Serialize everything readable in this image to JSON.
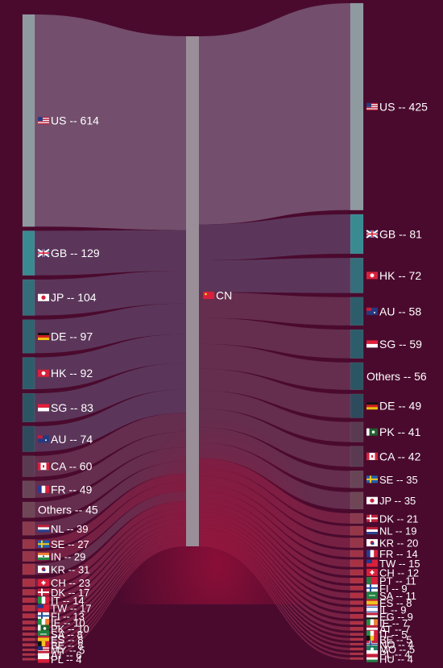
{
  "chart_data": {
    "type": "sankey",
    "title": "",
    "center": {
      "code": "CN",
      "label": "CN",
      "flag": "cn"
    },
    "left_label_separator": " -- ",
    "right_label_separator": "  -- ",
    "left": [
      {
        "code": "US",
        "value": 614,
        "flag": "us",
        "color": "#8e9aa0"
      },
      {
        "code": "GB",
        "value": 129,
        "flag": "gb",
        "color": "#3a8a92"
      },
      {
        "code": "JP",
        "value": 104,
        "flag": "jp",
        "color": "#336e7a"
      },
      {
        "code": "DE",
        "value": 97,
        "flag": "de",
        "color": "#2f6470"
      },
      {
        "code": "HK",
        "value": 92,
        "flag": "hk",
        "color": "#2d5d6b"
      },
      {
        "code": "SG",
        "value": 83,
        "flag": "sg",
        "color": "#2c5563"
      },
      {
        "code": "AU",
        "value": 74,
        "flag": "au",
        "color": "#2d4b5c"
      },
      {
        "code": "CA",
        "value": 60,
        "flag": "ca",
        "color": "#5a3a50"
      },
      {
        "code": "FR",
        "value": 49,
        "flag": "fr",
        "color": "#684556"
      },
      {
        "code": "Others",
        "value": 45,
        "flag": "",
        "color": "#6e4655"
      },
      {
        "code": "NL",
        "value": 39,
        "flag": "nl",
        "color": "#8a3a4e"
      },
      {
        "code": "SE",
        "value": 27,
        "flag": "se",
        "color": "#963648"
      },
      {
        "code": "IN",
        "value": 29,
        "flag": "in",
        "color": "#963648"
      },
      {
        "code": "KR",
        "value": 31,
        "flag": "kr",
        "color": "#a03446"
      },
      {
        "code": "CH",
        "value": 23,
        "flag": "ch",
        "color": "#a83244"
      },
      {
        "code": "DK",
        "value": 17,
        "flag": "dk",
        "color": "#a83244"
      },
      {
        "code": "IT",
        "value": 14,
        "flag": "it",
        "color": "#b03042"
      },
      {
        "code": "TW",
        "value": 17,
        "flag": "tw",
        "color": "#b03042"
      },
      {
        "code": "FI",
        "value": 13,
        "flag": "fi",
        "color": "#b03042"
      },
      {
        "code": "IE",
        "value": 10,
        "flag": "ie",
        "color": "#b03042"
      },
      {
        "code": "PK",
        "value": 10,
        "flag": "pk",
        "color": "#b03042"
      },
      {
        "code": "SA",
        "value": 8,
        "flag": "sa",
        "color": "#b03042"
      },
      {
        "code": "ES",
        "value": 8,
        "flag": "es",
        "color": "#b03042"
      },
      {
        "code": "BE",
        "value": 8,
        "flag": "be",
        "color": "#b03042"
      },
      {
        "code": "MY",
        "value": 5,
        "flag": "my",
        "color": "#b03042"
      },
      {
        "code": "AT",
        "value": 6,
        "flag": "at",
        "color": "#b03042"
      },
      {
        "code": "PL",
        "value": 4,
        "flag": "pl",
        "color": "#b03042"
      }
    ],
    "right": [
      {
        "code": "US",
        "value": 425,
        "flag": "us",
        "color": "#8e9aa0"
      },
      {
        "code": "GB",
        "value": 81,
        "flag": "gb",
        "color": "#3a8a92"
      },
      {
        "code": "HK",
        "value": 72,
        "flag": "hk",
        "color": "#336e7a"
      },
      {
        "code": "AU",
        "value": 58,
        "flag": "au",
        "color": "#2d5d6b"
      },
      {
        "code": "SG",
        "value": 59,
        "flag": "sg",
        "color": "#2d5d6b"
      },
      {
        "code": "Others",
        "value": 56,
        "flag": "",
        "color": "#2c5563"
      },
      {
        "code": "DE",
        "value": 49,
        "flag": "de",
        "color": "#2d4b5c"
      },
      {
        "code": "PK",
        "value": 41,
        "flag": "pk",
        "color": "#5a3a50"
      },
      {
        "code": "CA",
        "value": 42,
        "flag": "ca",
        "color": "#5a3a50"
      },
      {
        "code": "SE",
        "value": 35,
        "flag": "se",
        "color": "#684556"
      },
      {
        "code": "JP",
        "value": 35,
        "flag": "jp",
        "color": "#6e4655"
      },
      {
        "code": "DK",
        "value": 21,
        "flag": "dk",
        "color": "#8a3a4e"
      },
      {
        "code": "NL",
        "value": 19,
        "flag": "nl",
        "color": "#963648"
      },
      {
        "code": "KR",
        "value": 20,
        "flag": "kr",
        "color": "#963648"
      },
      {
        "code": "FR",
        "value": 14,
        "flag": "fr",
        "color": "#a03446"
      },
      {
        "code": "TW",
        "value": 15,
        "flag": "tw",
        "color": "#a83244"
      },
      {
        "code": "CH",
        "value": 12,
        "flag": "ch",
        "color": "#a83244"
      },
      {
        "code": "PT",
        "value": 11,
        "flag": "pt",
        "color": "#b03042"
      },
      {
        "code": "FI",
        "value": 9,
        "flag": "fi",
        "color": "#b03042"
      },
      {
        "code": "SA",
        "value": 11,
        "flag": "sa",
        "color": "#b03042"
      },
      {
        "code": "ES",
        "value": 8,
        "flag": "es",
        "color": "#b03042"
      },
      {
        "code": "IL",
        "value": 9,
        "flag": "il",
        "color": "#b03042"
      },
      {
        "code": "EG",
        "value": 9,
        "flag": "eg",
        "color": "#b03042"
      },
      {
        "code": "IE",
        "value": 7,
        "flag": "ie",
        "color": "#b03042"
      },
      {
        "code": "AT",
        "value": 7,
        "flag": "at",
        "color": "#b03042"
      },
      {
        "code": "IT",
        "value": 5,
        "flag": "it",
        "color": "#b03042"
      },
      {
        "code": "BE",
        "value": 5,
        "flag": "be",
        "color": "#b03042"
      },
      {
        "code": "NO",
        "value": 4,
        "flag": "no",
        "color": "#b03042"
      },
      {
        "code": "MO",
        "value": 5,
        "flag": "mo",
        "color": "#b03042"
      },
      {
        "code": "PL",
        "value": 4,
        "flag": "pl",
        "color": "#b03042"
      },
      {
        "code": "HU",
        "value": 4,
        "flag": "hu",
        "color": "#b03042"
      }
    ],
    "colors": {
      "background": "#4a0a2e",
      "center_node": "#9a8e98",
      "flow": "#8a5a80",
      "flow_small": "#b02048"
    }
  }
}
